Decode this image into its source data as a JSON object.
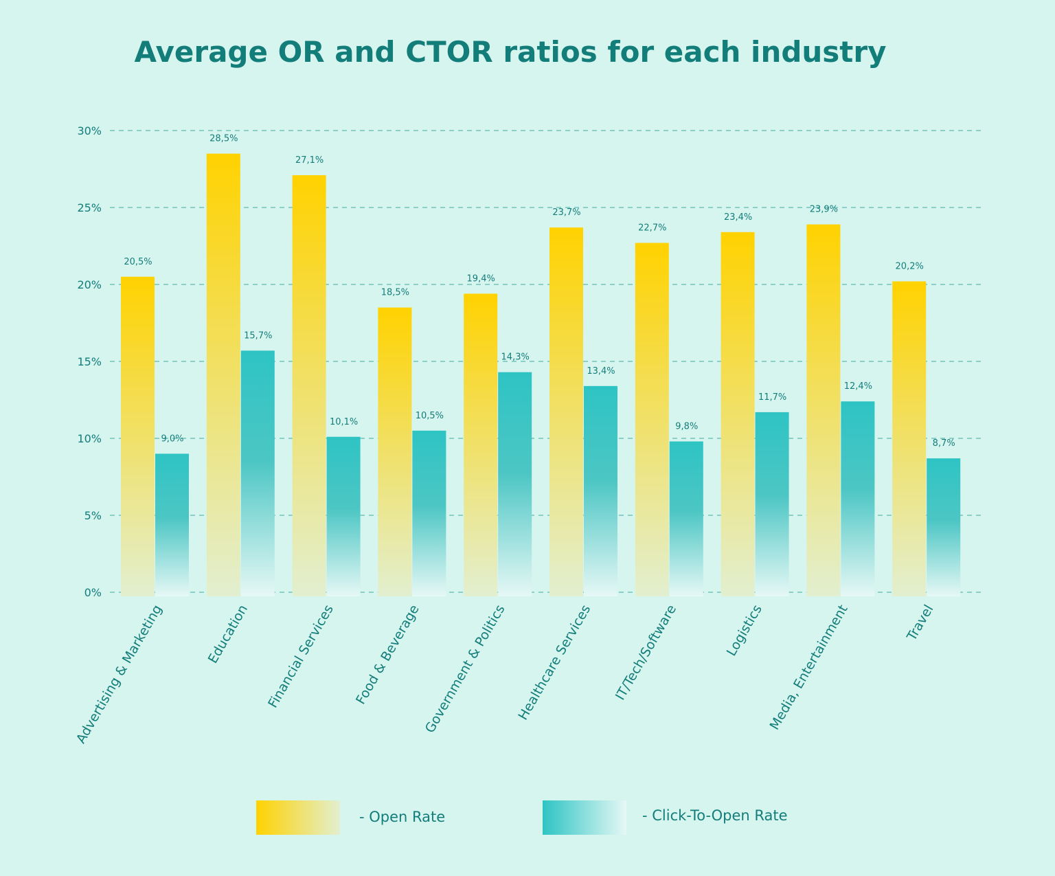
{
  "chart_data": {
    "type": "bar",
    "title": "Average OR and CTOR ratios for each industry",
    "xlabel": "",
    "ylabel": "",
    "ylim": [
      0,
      30
    ],
    "yticks": [
      "0%",
      "5%",
      "10%",
      "15%",
      "20%",
      "25%",
      "30%"
    ],
    "ytick_values": [
      0,
      5,
      10,
      15,
      20,
      25,
      30
    ],
    "grid": true,
    "legend_placement": "bottom",
    "categories": [
      "Advertising & Marketing",
      "Education",
      "Financial Services",
      "Food & Beverage",
      "Government & Politics",
      "Healthcare Services",
      "IT/Tech/Software",
      "Logistics",
      "Media, Entertainment",
      "Travel"
    ],
    "series": [
      {
        "name": "Open Rate",
        "legend_label": "-  Open Rate",
        "color": "#ffd200",
        "values": [
          20.5,
          28.5,
          27.1,
          18.5,
          19.4,
          23.7,
          22.7,
          23.4,
          23.9,
          20.2
        ],
        "labels": [
          "20,5%",
          "28,5%",
          "27,1%",
          "18,5%",
          "19,4%",
          "23,7%",
          "22,7%",
          "23,4%",
          "23,9%",
          "20,2%"
        ]
      },
      {
        "name": "Click-To-Open Rate",
        "legend_label": "-  Click-To-Open Rate",
        "color": "#2ec4c4",
        "values": [
          9.0,
          15.7,
          10.1,
          10.5,
          14.3,
          13.4,
          9.8,
          11.7,
          12.4,
          8.7
        ],
        "labels": [
          "9,0%",
          "15,7%",
          "10,1%",
          "10,5%",
          "14,3%",
          "13,4%",
          "9,8%",
          "11,7%",
          "12,4%",
          "8,7%"
        ]
      }
    ]
  },
  "colors": {
    "background": "#d7f5ef",
    "text": "#137d7a",
    "grid": "#5fb8b0"
  }
}
